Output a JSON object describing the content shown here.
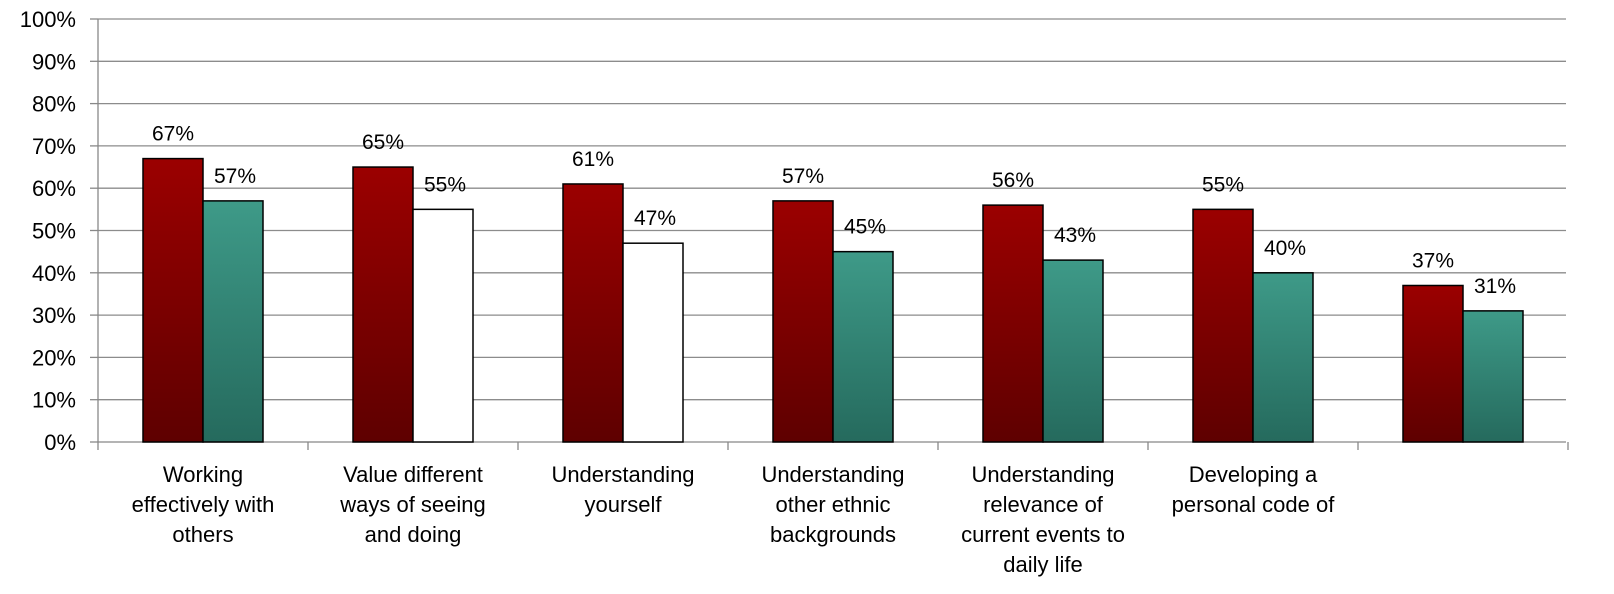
{
  "chart_data": {
    "type": "bar",
    "title": "",
    "xlabel": "",
    "ylabel": "",
    "ylim": [
      0,
      100
    ],
    "y_ticks": [
      "0%",
      "10%",
      "20%",
      "30%",
      "40%",
      "50%",
      "60%",
      "70%",
      "80%",
      "90%",
      "100%"
    ],
    "grid": true,
    "legend": "none",
    "categories": [
      [
        "Working",
        "effectively with",
        "others"
      ],
      [
        "Value different",
        "ways of seeing",
        "and doing"
      ],
      [
        "Understanding",
        "yourself"
      ],
      [
        "Understanding",
        "other ethnic",
        "backgrounds"
      ],
      [
        "Understanding",
        "relevance of",
        "current events to",
        "daily life"
      ],
      [
        "Developing a",
        "personal code of"
      ],
      []
    ],
    "series": [
      {
        "values": [
          67,
          65,
          61,
          57,
          56,
          55,
          37
        ],
        "labels": [
          "67%",
          "65%",
          "61%",
          "57%",
          "56%",
          "55%",
          "37%"
        ],
        "color": "#9b0000"
      },
      {
        "values": [
          57,
          55,
          47,
          45,
          43,
          40,
          31
        ],
        "labels": [
          "57%",
          "55%",
          "47%",
          "45%",
          "43%",
          "40%",
          "31%"
        ],
        "color": "#3a9080",
        "unfilled_indices": [
          1,
          2
        ]
      }
    ]
  }
}
